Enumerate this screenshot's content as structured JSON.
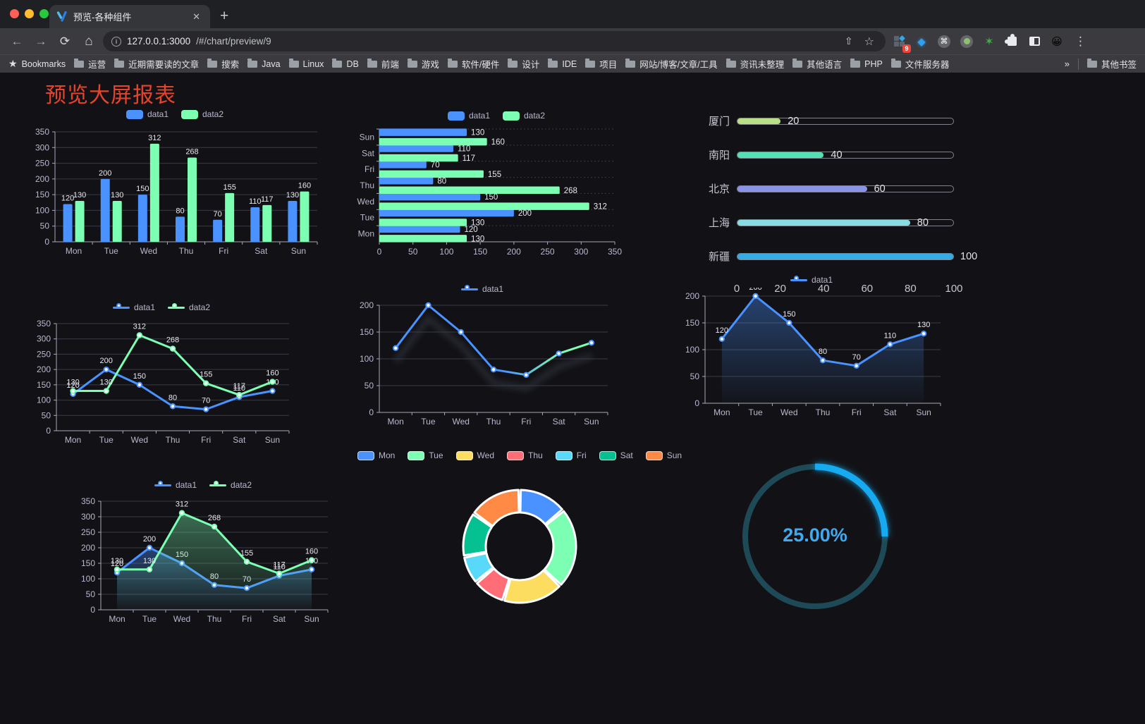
{
  "browser": {
    "tab": {
      "title": "预览-各种组件",
      "close_glyph": "✕",
      "new_tab_glyph": "+"
    },
    "toolbar": {
      "back_glyph": "←",
      "forward_glyph": "→",
      "reload_glyph": "⟳",
      "home_glyph": "⌂",
      "url_host": "127.0.0.1:3000",
      "url_path": "/#/chart/preview/9",
      "share_glyph": "⇧",
      "star_glyph": "☆",
      "extension_badge": "9",
      "cmd_glyph": "⌘",
      "green_star_glyph": "✶",
      "emoji_glyph": "😀",
      "menu_glyph": "⋮"
    },
    "bookmarks": {
      "bar_label": "Bookmarks",
      "items": [
        "运营",
        "近期需要读的文章",
        "搜索",
        "Java",
        "Linux",
        "DB",
        "前端",
        "游戏",
        "软件/硬件",
        "设计",
        "IDE",
        "项目",
        "网站/博客/文章/工具",
        "资讯未整理",
        "其他语言",
        "PHP",
        "文件服务器"
      ],
      "overflow_glyph": "»",
      "other_label": "其他书签"
    }
  },
  "page": {
    "title": "预览大屏报表",
    "title_color": "#e5442a",
    "background": "#121216"
  },
  "theme": {
    "axis_label_color": "#b9b8ce",
    "axis_line_color": "#a8a8ba",
    "grid_line_color": "#3a3a46",
    "value_label_color": "#e8e8ee"
  },
  "chart_data": [
    {
      "id": "bar-vertical",
      "type": "bar",
      "legend_position": "top",
      "categories": [
        "Mon",
        "Tue",
        "Wed",
        "Thu",
        "Fri",
        "Sat",
        "Sun"
      ],
      "series": [
        {
          "name": "data1",
          "color": "#4992ff",
          "values": [
            120,
            200,
            150,
            80,
            70,
            110,
            130
          ]
        },
        {
          "name": "data2",
          "color": "#7cffb2",
          "values": [
            130,
            130,
            312,
            268,
            155,
            117,
            160
          ]
        }
      ],
      "ylim": [
        0,
        350
      ],
      "ytick": 50,
      "grid": true
    },
    {
      "id": "bar-horizontal",
      "type": "bar",
      "orientation": "horizontal",
      "legend_position": "top",
      "categories": [
        "Mon",
        "Tue",
        "Wed",
        "Thu",
        "Fri",
        "Sat",
        "Sun"
      ],
      "series": [
        {
          "name": "data1",
          "color": "#4992ff",
          "values": [
            120,
            200,
            150,
            80,
            70,
            110,
            130
          ]
        },
        {
          "name": "data2",
          "color": "#7cffb2",
          "values": [
            130,
            130,
            312,
            268,
            155,
            117,
            160
          ]
        }
      ],
      "xlim": [
        0,
        350
      ],
      "xtick": 50
    },
    {
      "id": "progress",
      "type": "bar",
      "orientation": "horizontal-progress",
      "categories": [
        "厦门",
        "南阳",
        "北京",
        "上海",
        "新疆"
      ],
      "values": [
        20,
        40,
        60,
        80,
        100
      ],
      "colors": [
        "#b9e087",
        "#54e0b2",
        "#8b93e8",
        "#87dde3",
        "#36ace4"
      ],
      "xlim": [
        0,
        100
      ],
      "xticks": [
        0,
        20,
        40,
        60,
        80,
        100
      ]
    },
    {
      "id": "line-basic",
      "type": "line",
      "legend_position": "top",
      "labels": true,
      "categories": [
        "Mon",
        "Tue",
        "Wed",
        "Thu",
        "Fri",
        "Sat",
        "Sun"
      ],
      "series": [
        {
          "name": "data1",
          "color": "#4992ff",
          "values": [
            120,
            200,
            150,
            80,
            70,
            110,
            130
          ]
        },
        {
          "name": "data2",
          "color": "#7cffb2",
          "values": [
            130,
            130,
            312,
            268,
            155,
            117,
            160
          ]
        }
      ],
      "ylim": [
        0,
        350
      ],
      "ytick": 50
    },
    {
      "id": "line-gradient",
      "type": "line",
      "legend_position": "top",
      "labels": false,
      "shadow": true,
      "categories": [
        "Mon",
        "Tue",
        "Wed",
        "Thu",
        "Fri",
        "Sat",
        "Sun"
      ],
      "series": [
        {
          "name": "data1",
          "gradient": [
            "#4992ff",
            "#7cffb2"
          ],
          "marker_color": "#4992ff",
          "values": [
            120,
            200,
            150,
            80,
            70,
            110,
            130
          ]
        }
      ],
      "ylim": [
        0,
        200
      ],
      "ytick": 50
    },
    {
      "id": "line-area",
      "type": "area",
      "legend_position": "top",
      "labels": true,
      "categories": [
        "Mon",
        "Tue",
        "Wed",
        "Thu",
        "Fri",
        "Sat",
        "Sun"
      ],
      "series": [
        {
          "name": "data1",
          "color": "#4992ff",
          "area": true,
          "values": [
            120,
            200,
            150,
            80,
            70,
            110,
            130
          ]
        }
      ],
      "ylim": [
        0,
        200
      ],
      "ytick": 50
    },
    {
      "id": "line-area-double",
      "type": "area",
      "legend_position": "top",
      "labels": true,
      "categories": [
        "Mon",
        "Tue",
        "Wed",
        "Thu",
        "Fri",
        "Sat",
        "Sun"
      ],
      "series": [
        {
          "name": "data1",
          "color": "#4992ff",
          "area": true,
          "values": [
            120,
            200,
            150,
            80,
            70,
            110,
            130
          ]
        },
        {
          "name": "data2",
          "color": "#7cffb2",
          "area": true,
          "values": [
            130,
            130,
            312,
            268,
            155,
            117,
            160
          ]
        }
      ],
      "ylim": [
        0,
        350
      ],
      "ytick": 50
    },
    {
      "id": "donut",
      "type": "pie",
      "legend_position": "top",
      "categories": [
        "Mon",
        "Tue",
        "Wed",
        "Thu",
        "Fri",
        "Sat",
        "Sun"
      ],
      "values": [
        120,
        200,
        150,
        80,
        70,
        110,
        130
      ],
      "colors": [
        "#4992ff",
        "#7cffb2",
        "#fddd60",
        "#ff6e76",
        "#58d9f9",
        "#05c091",
        "#ff8a45"
      ],
      "donut": true,
      "border_color": "#ffffff",
      "border_width": 3
    },
    {
      "id": "gauge",
      "type": "gauge",
      "value": 25,
      "label": "25.00%",
      "color": "#16aaf0",
      "track_color": "#1d4a56",
      "text_color": "#41a9ee"
    }
  ]
}
